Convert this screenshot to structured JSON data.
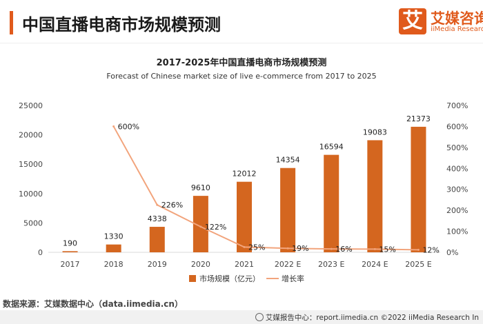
{
  "header": {
    "title": "中国直播电商市场规模预测",
    "logo_mark": "艾",
    "logo_cn": "艾媒咨询",
    "logo_en": "iiMedia Research"
  },
  "chart_data": {
    "type": "bar",
    "title": "2017-2025年中国直播电商市场规模预测",
    "subtitle": "Forecast of Chinese market size of live e-commerce from 2017 to 2025",
    "categories": [
      "2017",
      "2018",
      "2019",
      "2020",
      "2021",
      "2022 E",
      "2023 E",
      "2024 E",
      "2025 E"
    ],
    "series": [
      {
        "name": "市场规模（亿元）",
        "type": "bar",
        "axis": "left",
        "values": [
          190,
          1330,
          4338,
          9610,
          12012,
          14354,
          16594,
          19083,
          21373
        ],
        "labels": [
          "190",
          "1330",
          "4338",
          "9610",
          "12012",
          "14354",
          "16594",
          "19083",
          "21373"
        ]
      },
      {
        "name": "增长率",
        "type": "line",
        "axis": "right",
        "values": [
          null,
          600,
          226,
          122,
          25,
          19,
          16,
          15,
          12
        ],
        "labels": [
          "",
          "600%",
          "226%",
          "122%",
          "25%",
          "19%",
          "16%",
          "15%",
          "12%"
        ]
      }
    ],
    "ylim": [
      0,
      25000
    ],
    "yticks": [
      "0",
      "5000",
      "10000",
      "15000",
      "20000",
      "25000"
    ],
    "y2lim": [
      0,
      700
    ],
    "y2ticks": [
      "0%",
      "100%",
      "200%",
      "300%",
      "400%",
      "500%",
      "600%",
      "700%"
    ],
    "grid": false,
    "legend_position": "bottom",
    "colors": {
      "bar": "#d4661f",
      "line": "#f2a47c"
    }
  },
  "source": "数据来源：艾媒数据中心（data.iimedia.cn）",
  "footer": "艾媒报告中心：report.iimedia.cn   ©2022  iiMedia Research  In"
}
